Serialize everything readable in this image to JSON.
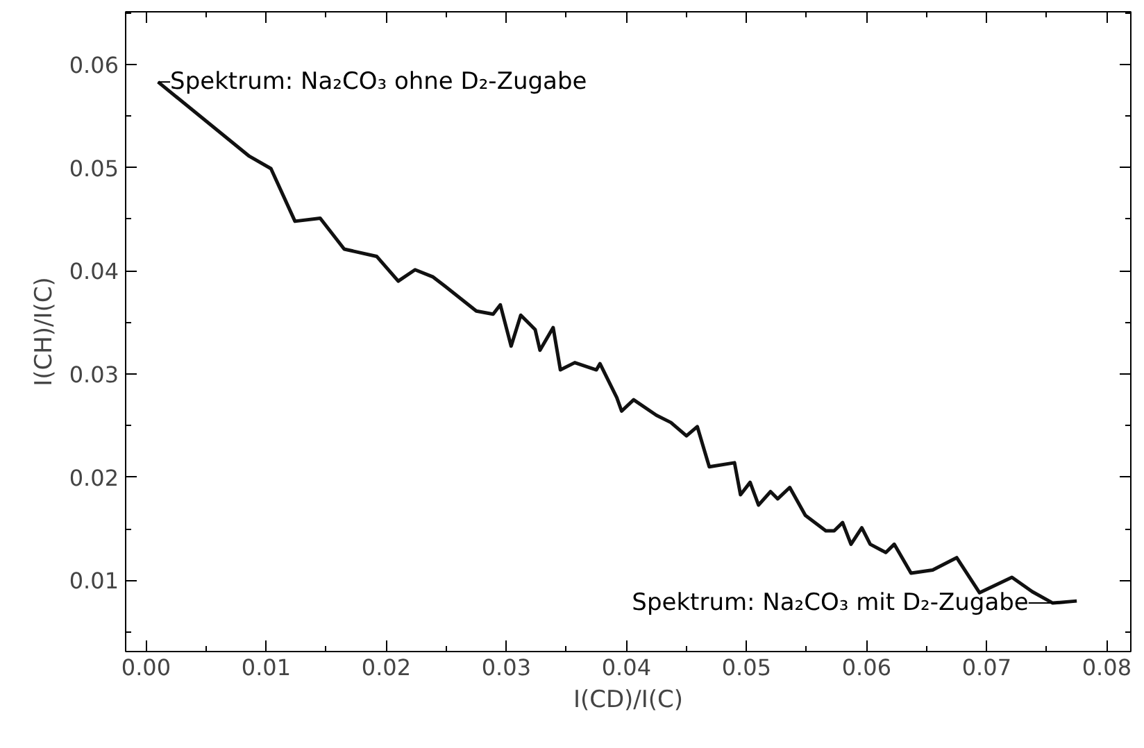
{
  "chart_data": {
    "type": "line",
    "xlabel": "I(CD)/I(C)",
    "ylabel": "I(CH)/I(C)",
    "x": [
      0.001,
      0.0086,
      0.0104,
      0.0124,
      0.0145,
      0.0165,
      0.0192,
      0.021,
      0.0224,
      0.0239,
      0.0249,
      0.0275,
      0.0289,
      0.0295,
      0.0304,
      0.0312,
      0.0324,
      0.0328,
      0.0339,
      0.0345,
      0.0357,
      0.0375,
      0.0378,
      0.0392,
      0.0396,
      0.0406,
      0.0425,
      0.0437,
      0.045,
      0.0459,
      0.0469,
      0.049,
      0.0495,
      0.0503,
      0.051,
      0.052,
      0.0526,
      0.0536,
      0.0549,
      0.0566,
      0.0573,
      0.058,
      0.0587,
      0.0596,
      0.0603,
      0.0616,
      0.0623,
      0.0637,
      0.0655,
      0.0675,
      0.0694,
      0.0721,
      0.0738,
      0.0755,
      0.0775
    ],
    "series": [
      {
        "color": "#111111",
        "values": [
          0.0583,
          0.0511,
          0.0499,
          0.0448,
          0.0451,
          0.0421,
          0.0414,
          0.039,
          0.0401,
          0.0394,
          0.0385,
          0.0361,
          0.0358,
          0.0367,
          0.0327,
          0.0357,
          0.0343,
          0.0323,
          0.0345,
          0.0304,
          0.0311,
          0.0304,
          0.031,
          0.0277,
          0.0264,
          0.0275,
          0.026,
          0.0253,
          0.024,
          0.0249,
          0.021,
          0.0214,
          0.0183,
          0.0195,
          0.0173,
          0.0186,
          0.0179,
          0.019,
          0.0163,
          0.0148,
          0.0148,
          0.0156,
          0.0135,
          0.0151,
          0.0135,
          0.0127,
          0.0135,
          0.0107,
          0.011,
          0.0122,
          0.0088,
          0.0103,
          0.0089,
          0.0078,
          0.008
        ]
      }
    ],
    "xlim": [
      -0.0017,
      0.082
    ],
    "ylim": [
      0.0031,
      0.0651
    ],
    "xticks": [
      {
        "value": 0,
        "label": "0.00"
      },
      0.01,
      0.02,
      0.03,
      0.04,
      0.05,
      0.06,
      0.07,
      0.08
    ],
    "yticks": [
      0.01,
      0.02,
      0.03,
      0.04,
      0.05,
      0.06
    ],
    "annotations": [
      {
        "text": "Spektrum: Na₂CO₃ ohne D₂-Zugabe",
        "x": 0.001,
        "y": 0.0583
      },
      {
        "text": "Spektrum: Na₂CO₃ mit D₂-Zugabe",
        "x": 0.0765,
        "y": 0.0078
      }
    ],
    "grid": false,
    "marker": "none",
    "line_style": "solid"
  }
}
